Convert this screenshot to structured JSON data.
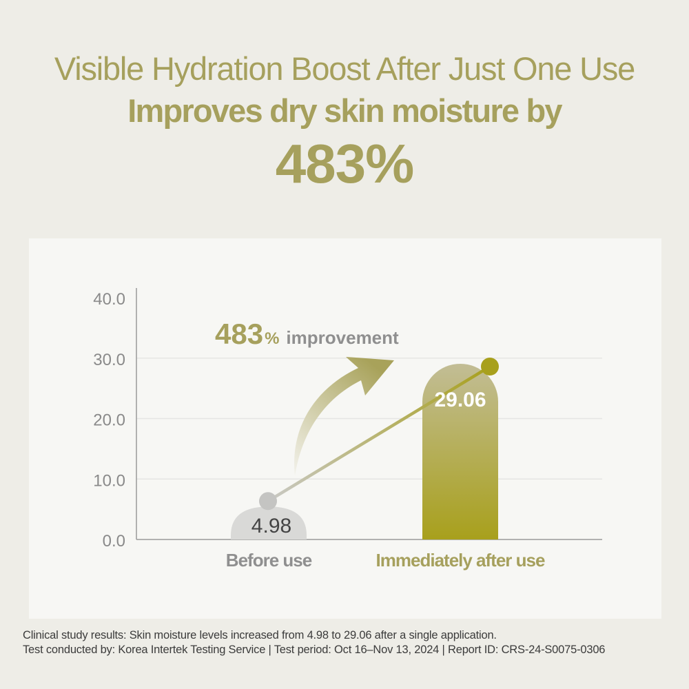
{
  "headline": {
    "line1": "Visible Hydration Boost After Just One Use",
    "line2": "Improves dry skin moisture by",
    "line3": "483%"
  },
  "colors": {
    "background": "#eeede7",
    "panel": "#f7f7f4",
    "olive": "#a6a05d",
    "olive_bar_top": "#b3ad7a",
    "olive_bar_bottom": "#a8a01c",
    "grey_bar": "#d9d9d7",
    "grey_point": "#c4c4c2",
    "axis": "#9a9a9a",
    "grid": "#e6e6e3",
    "tick_text": "#8a8a8a"
  },
  "chart_data": {
    "type": "bar",
    "categories": [
      "Before use",
      "Immediately after use"
    ],
    "values": [
      4.98,
      29.06
    ],
    "value_labels": [
      "4.98",
      "29.06"
    ],
    "ylim": [
      0,
      40
    ],
    "yticks": [
      "0.0",
      "10.0",
      "20.0",
      "30.0",
      "40.0"
    ],
    "grid": true,
    "annotation": {
      "number": "483",
      "unit": "%",
      "text": "improvement"
    },
    "trend_line": true
  },
  "footnote": {
    "line1": "Clinical study results: Skin moisture levels increased from 4.98 to 29.06 after a single application.",
    "line2": "Test conducted by: Korea Intertek Testing Service | Test period: Oct 16–Nov 13, 2024 | Report ID: CRS-24-S0075-0306"
  }
}
